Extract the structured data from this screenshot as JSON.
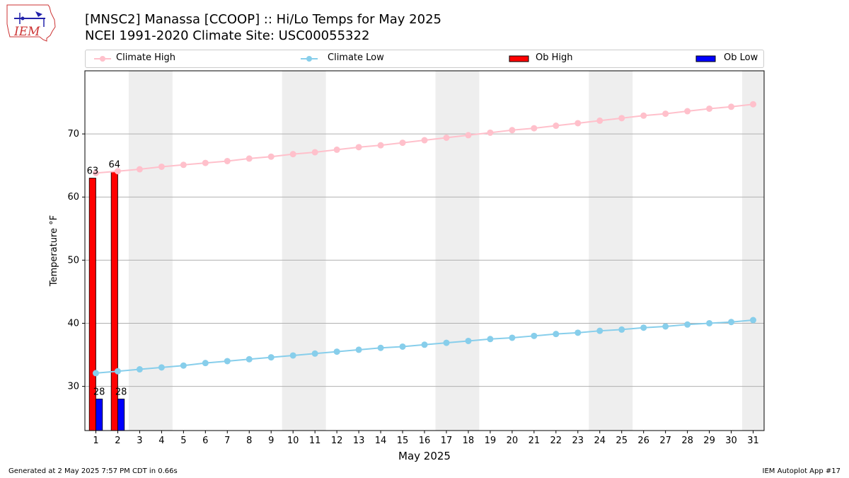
{
  "title_line1": "[MNSC2] Manassa [CCOOP] :: Hi/Lo Temps for May 2025",
  "title_line2": "NCEI 1991-2020 Climate Site: USC00055322",
  "logo_text": "IEM",
  "footer_left": "Generated at 2 May 2025 7:57 PM CDT in 0.66s",
  "footer_right": "IEM Autoplot App #17",
  "legend": [
    {
      "label": "Climate High",
      "kind": "line",
      "color": "#ffc0cb"
    },
    {
      "label": "Climate Low",
      "kind": "line",
      "color": "#87ceeb"
    },
    {
      "label": "Ob High",
      "kind": "bar",
      "color": "#ff0000"
    },
    {
      "label": "Ob Low",
      "kind": "bar",
      "color": "#0000ff"
    }
  ],
  "chart_data": {
    "type": "bar",
    "xlabel": "May 2025",
    "ylabel": "Temperature °F",
    "x": [
      1,
      2,
      3,
      4,
      5,
      6,
      7,
      8,
      9,
      10,
      11,
      12,
      13,
      14,
      15,
      16,
      17,
      18,
      19,
      20,
      21,
      22,
      23,
      24,
      25,
      26,
      27,
      28,
      29,
      30,
      31
    ],
    "xlim": [
      0.5,
      31.5
    ],
    "ylim": [
      23,
      80
    ],
    "yticks": [
      30,
      40,
      50,
      60,
      70
    ],
    "grid": "horizontal",
    "weekend_shading": [
      [
        3,
        4
      ],
      [
        10,
        11
      ],
      [
        17,
        18
      ],
      [
        24,
        25
      ],
      [
        31,
        31
      ]
    ],
    "legend_position": "top",
    "series": [
      {
        "name": "Climate High",
        "type": "line",
        "color": "#ffc0cb",
        "values": [
          63.8,
          64.1,
          64.4,
          64.8,
          65.1,
          65.4,
          65.7,
          66.1,
          66.4,
          66.8,
          67.1,
          67.5,
          67.9,
          68.2,
          68.6,
          69.0,
          69.4,
          69.8,
          70.2,
          70.6,
          70.9,
          71.3,
          71.7,
          72.1,
          72.5,
          72.9,
          73.2,
          73.6,
          74.0,
          74.3,
          74.7
        ]
      },
      {
        "name": "Climate Low",
        "type": "line",
        "color": "#87ceeb",
        "values": [
          32.1,
          32.4,
          32.7,
          33.0,
          33.3,
          33.7,
          34.0,
          34.3,
          34.6,
          34.9,
          35.2,
          35.5,
          35.8,
          36.1,
          36.3,
          36.6,
          36.9,
          37.2,
          37.5,
          37.7,
          38.0,
          38.3,
          38.5,
          38.8,
          39.0,
          39.3,
          39.5,
          39.8,
          40.0,
          40.2,
          40.5
        ]
      },
      {
        "name": "Ob High",
        "type": "bar",
        "color": "#ff0000",
        "x": [
          1,
          2
        ],
        "values": [
          63,
          64
        ],
        "labels": [
          "63",
          "64"
        ]
      },
      {
        "name": "Ob Low",
        "type": "bar",
        "color": "#0000ff",
        "x": [
          1,
          2
        ],
        "values": [
          28,
          28
        ],
        "labels": [
          "28",
          "28"
        ]
      }
    ]
  }
}
